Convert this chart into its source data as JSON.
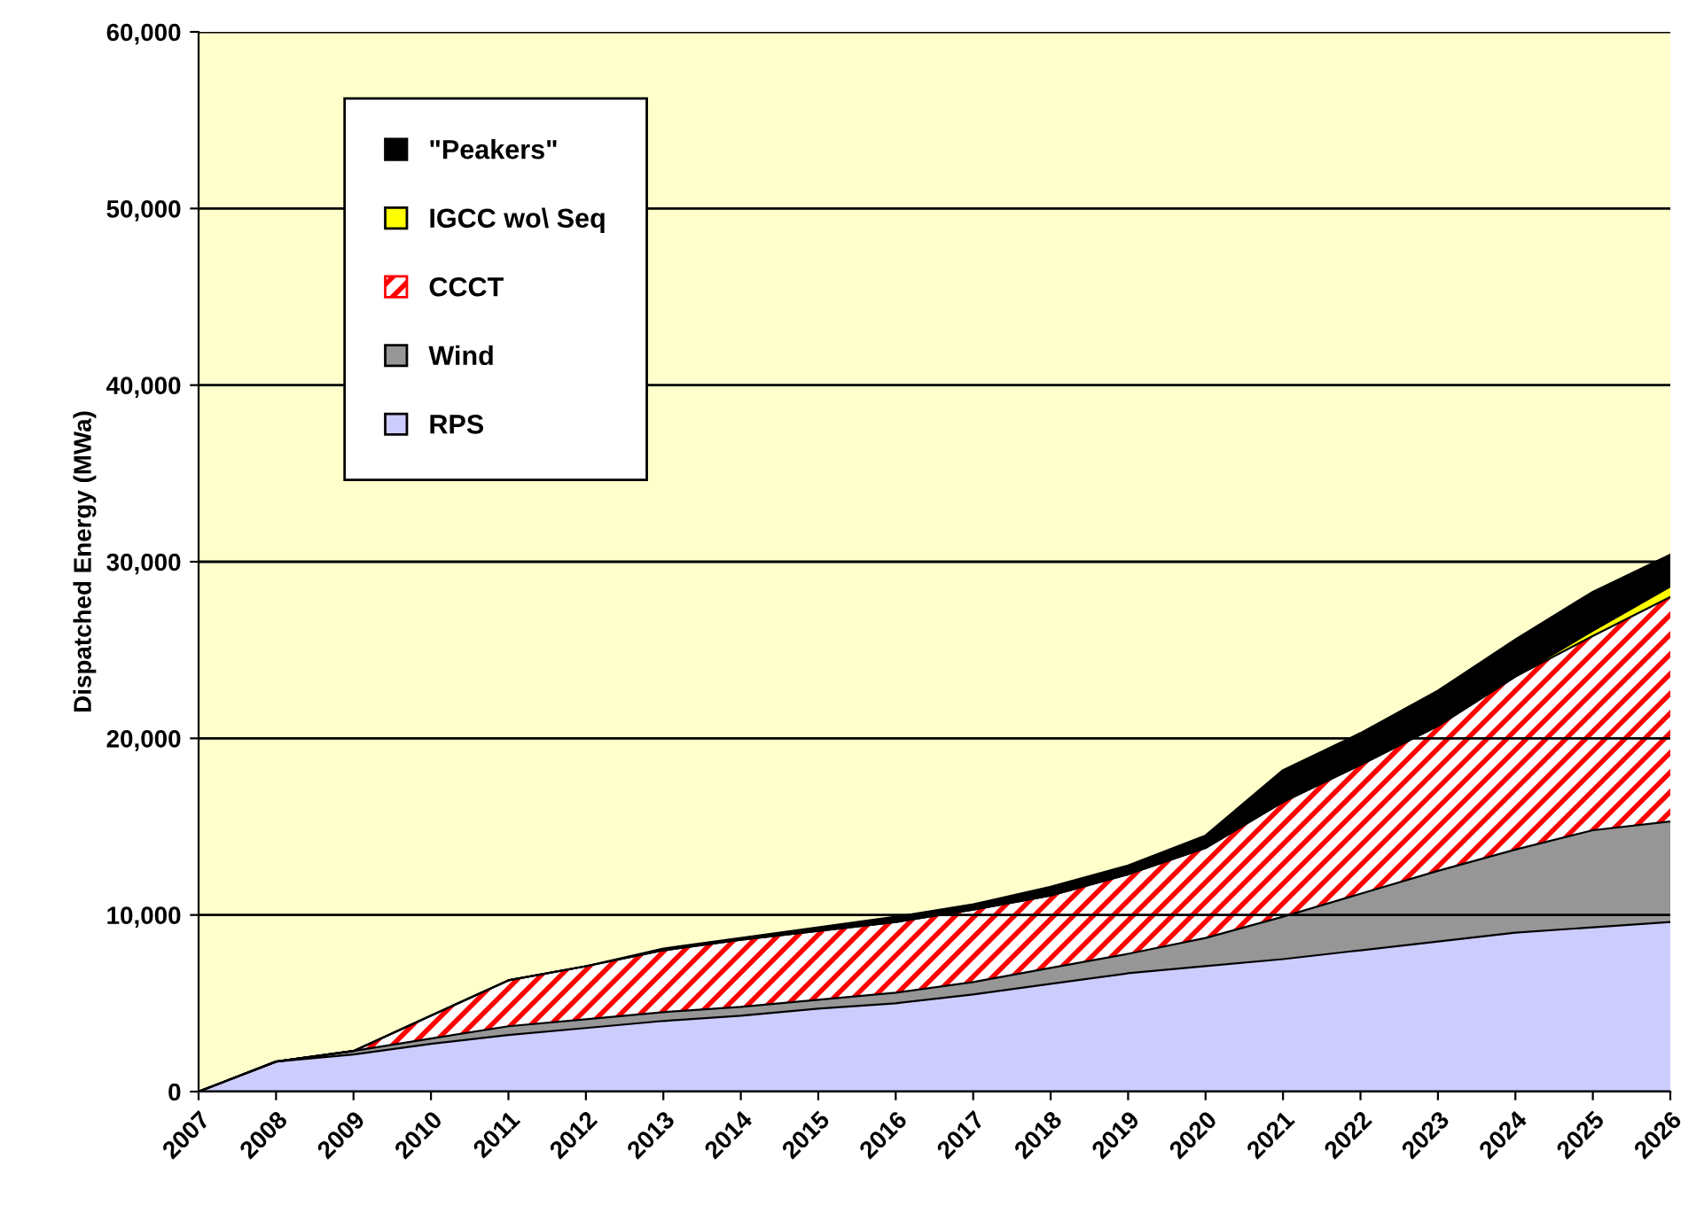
{
  "chart_data": {
    "type": "area",
    "stacked": true,
    "ylabel": "Dispatched Energy (MWa)",
    "x": [
      2007,
      2008,
      2009,
      2010,
      2011,
      2012,
      2013,
      2014,
      2015,
      2016,
      2017,
      2018,
      2019,
      2020,
      2021,
      2022,
      2023,
      2024,
      2025,
      2026
    ],
    "series": [
      {
        "name": "RPS",
        "color": "#ccccff",
        "values": [
          0,
          1700,
          2100,
          2700,
          3200,
          3600,
          4000,
          4300,
          4700,
          5000,
          5500,
          6100,
          6700,
          7100,
          7500,
          8000,
          8500,
          9000,
          9300,
          9600
        ]
      },
      {
        "name": "Wind",
        "color": "#969696",
        "values": [
          0,
          0,
          200,
          300,
          500,
          500,
          500,
          500,
          500,
          600,
          700,
          900,
          1100,
          1600,
          2400,
          3200,
          4000,
          4700,
          5500,
          5700
        ]
      },
      {
        "name": "CCCT",
        "color": "#ff0000",
        "values": [
          0,
          0,
          0,
          1300,
          2600,
          3000,
          3500,
          3800,
          3900,
          4000,
          4100,
          4100,
          4500,
          5100,
          6500,
          7300,
          8200,
          9800,
          11000,
          12700
        ]
      },
      {
        "name": "IGCC wo\\ Seq",
        "color": "#ffff00",
        "values": [
          0,
          0,
          0,
          0,
          0,
          0,
          0,
          0,
          0,
          0,
          0,
          0,
          0,
          0,
          0,
          0,
          0,
          0,
          300,
          600
        ]
      },
      {
        "name": "\"Peakers\"",
        "color": "#000000",
        "values": [
          0,
          0,
          0,
          0,
          0,
          0,
          100,
          100,
          200,
          300,
          300,
          500,
          500,
          700,
          1800,
          1800,
          2000,
          2100,
          2200,
          1800
        ]
      }
    ],
    "xlim": [
      2007,
      2026
    ],
    "xticks": [
      2007,
      2008,
      2009,
      2010,
      2011,
      2012,
      2013,
      2014,
      2015,
      2016,
      2017,
      2018,
      2019,
      2020,
      2021,
      2022,
      2023,
      2024,
      2025,
      2026
    ],
    "ylim": [
      0,
      60000
    ],
    "yticks": [
      {
        "value": 0,
        "label": "0"
      },
      {
        "value": 10000,
        "label": "10,000"
      },
      {
        "value": 20000,
        "label": "20,000"
      },
      {
        "value": 30000,
        "label": "30,000"
      },
      {
        "value": 40000,
        "label": "40,000"
      },
      {
        "value": 50000,
        "label": "50,000"
      },
      {
        "value": 60000,
        "label": "60,000"
      }
    ],
    "grid": "y",
    "legend": "top left"
  }
}
